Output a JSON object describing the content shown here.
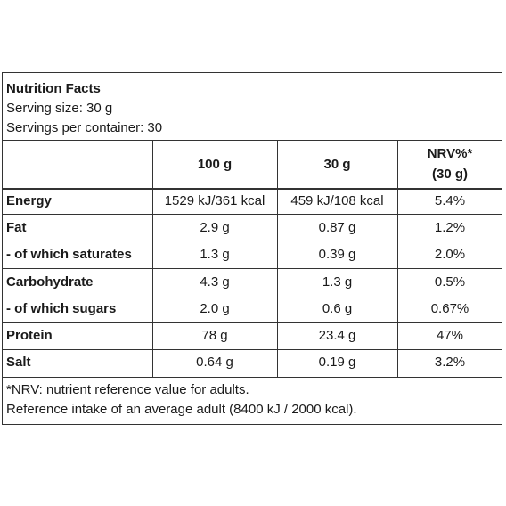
{
  "header": {
    "title": "Nutrition Facts",
    "serving_size": "Serving size: 30 g",
    "servings_per_container": "Servings per container: 30"
  },
  "table": {
    "columns": {
      "per100": "100 g",
      "per30": "30 g",
      "nrv_line1": "NRV%*",
      "nrv_line2": "(30 g)"
    },
    "rows": [
      {
        "name": "Energy",
        "per100": "1529 kJ/361 kcal",
        "per30": "459 kJ/108 kcal",
        "nrv": "5.4%"
      },
      {
        "name": "Fat",
        "per100": "2.9 g",
        "per30": "0.87 g",
        "nrv": "1.2%"
      },
      {
        "name": "- of which saturates",
        "per100": "1.3 g",
        "per30": "0.39 g",
        "nrv": "2.0%"
      },
      {
        "name": "Carbohydrate",
        "per100": "4.3 g",
        "per30": "1.3 g",
        "nrv": "0.5%"
      },
      {
        "name": "- of which sugars",
        "per100": "2.0 g",
        "per30": "0.6 g",
        "nrv": "0.67%"
      },
      {
        "name": "Protein",
        "per100": "78 g",
        "per30": "23.4 g",
        "nrv": "47%"
      },
      {
        "name": "Salt",
        "per100": "0.64 g",
        "per30": "0.19 g",
        "nrv": "3.2%"
      }
    ]
  },
  "footnote": {
    "line1": "*NRV: nutrient reference value for adults.",
    "line2": "Reference intake of an average adult (8400 kJ / 2000 kcal)."
  }
}
